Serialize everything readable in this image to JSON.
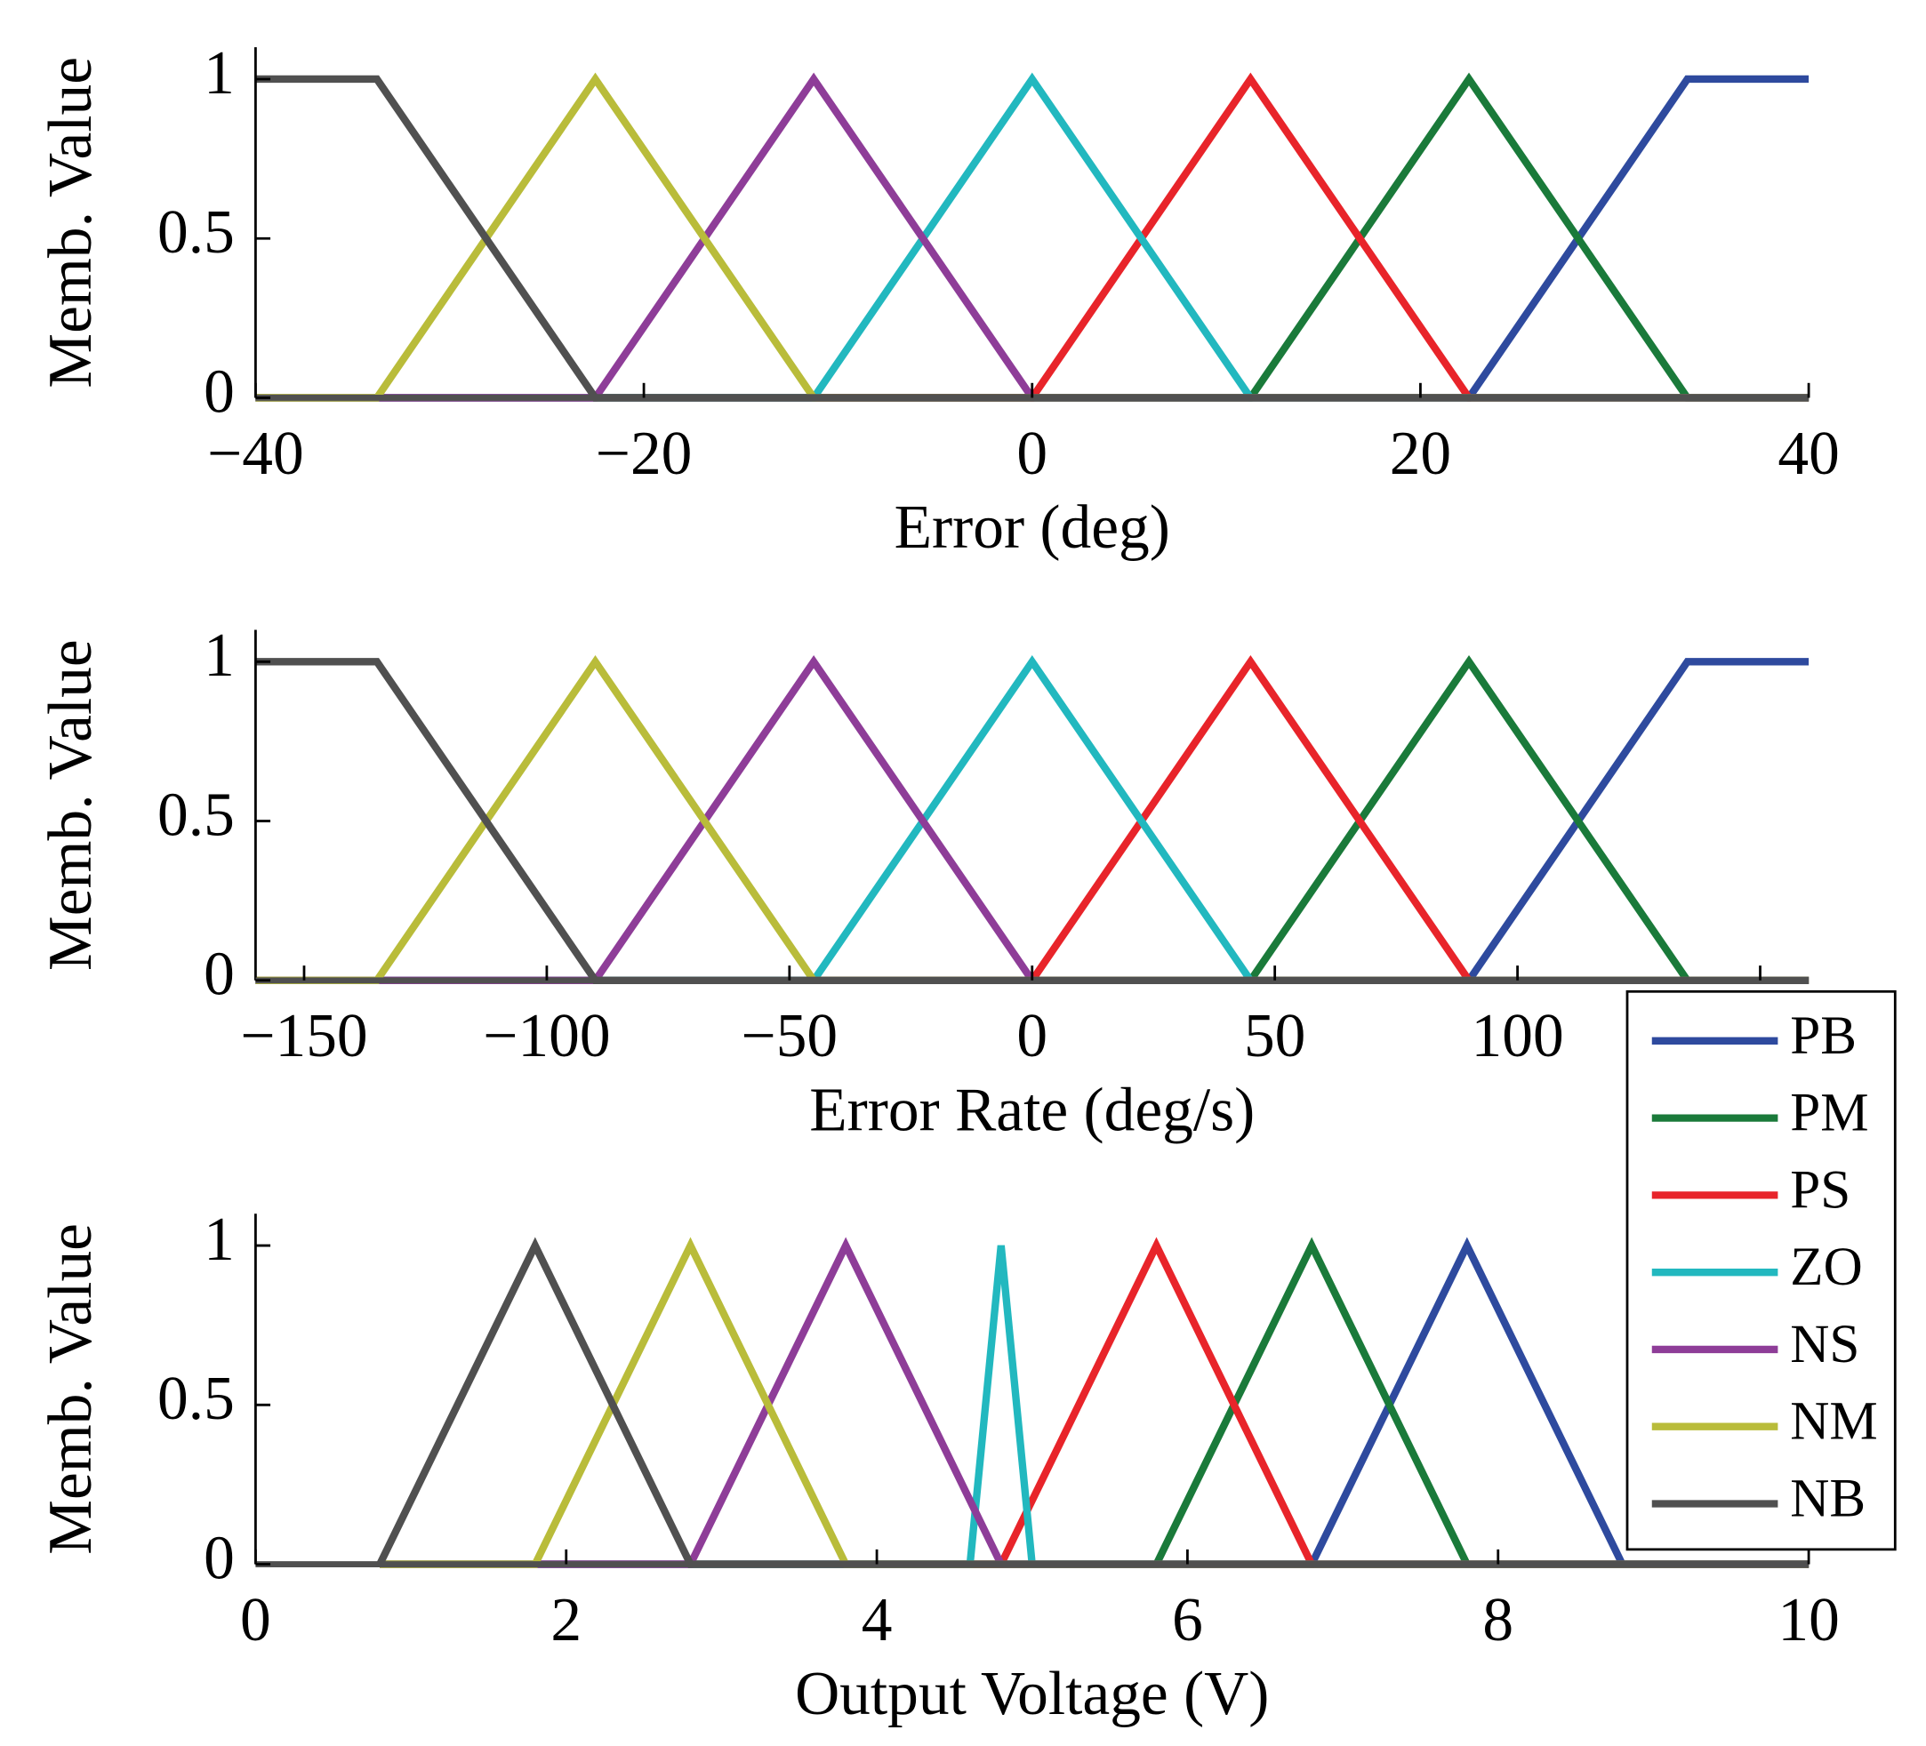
{
  "chart_data": [
    {
      "type": "line",
      "xlabel": "Error (deg)",
      "ylabel": "Memb. Value",
      "xlim": [
        -40,
        40
      ],
      "ylim": [
        0,
        1.1
      ],
      "xticks": [
        {
          "value": -40,
          "label": "−40"
        },
        {
          "value": -20,
          "label": "−20"
        },
        0,
        20,
        40
      ],
      "yticks": [
        0,
        0.5,
        1
      ],
      "series": [
        {
          "color": "#2e4a9e",
          "x": [
            -40,
            22.5,
            33.75,
            40
          ],
          "values": [
            0,
            0,
            1,
            1
          ]
        },
        {
          "color": "#1a7a3a",
          "x": [
            -40,
            11.25,
            22.5,
            33.75,
            40
          ],
          "values": [
            0,
            0,
            1,
            0,
            0
          ]
        },
        {
          "color": "#e8242a",
          "x": [
            -40,
            0,
            11.25,
            22.5,
            40
          ],
          "values": [
            0,
            0,
            1,
            0,
            0
          ]
        },
        {
          "color": "#22b8bf",
          "x": [
            -40,
            -11.25,
            0,
            11.25,
            40
          ],
          "values": [
            0,
            0,
            1,
            0,
            0
          ]
        },
        {
          "color": "#8e3d98",
          "x": [
            -40,
            -22.5,
            -11.25,
            0,
            40
          ],
          "values": [
            0,
            0,
            1,
            0,
            0
          ]
        },
        {
          "color": "#b9bc3a",
          "x": [
            -40,
            -33.75,
            -22.5,
            -11.25,
            40
          ],
          "values": [
            0,
            0,
            1,
            0,
            0
          ]
        },
        {
          "color": "#505050",
          "x": [
            -40,
            -33.75,
            -22.5,
            40
          ],
          "values": [
            1,
            1,
            0,
            0
          ]
        }
      ]
    },
    {
      "type": "line",
      "xlabel": "Error Rate (deg/s)",
      "ylabel": "Memb. Value",
      "xlim": [
        -160,
        160
      ],
      "ylim": [
        0,
        1.1
      ],
      "xticks": [
        {
          "value": -150,
          "label": "−150"
        },
        {
          "value": -100,
          "label": "−100"
        },
        {
          "value": -50,
          "label": "−50"
        },
        0,
        50,
        100,
        150
      ],
      "yticks": [
        0,
        0.5,
        1
      ],
      "series": [
        {
          "color": "#2e4a9e",
          "x": [
            -160,
            90,
            135,
            160
          ],
          "values": [
            0,
            0,
            1,
            1
          ]
        },
        {
          "color": "#1a7a3a",
          "x": [
            -160,
            45,
            90,
            135,
            160
          ],
          "values": [
            0,
            0,
            1,
            0,
            0
          ]
        },
        {
          "color": "#e8242a",
          "x": [
            -160,
            0,
            45,
            90,
            160
          ],
          "values": [
            0,
            0,
            1,
            0,
            0
          ]
        },
        {
          "color": "#22b8bf",
          "x": [
            -160,
            -45,
            0,
            45,
            160
          ],
          "values": [
            0,
            0,
            1,
            0,
            0
          ]
        },
        {
          "color": "#8e3d98",
          "x": [
            -160,
            -90,
            -45,
            0,
            160
          ],
          "values": [
            0,
            0,
            1,
            0,
            0
          ]
        },
        {
          "color": "#b9bc3a",
          "x": [
            -160,
            -135,
            -90,
            -45,
            160
          ],
          "values": [
            0,
            0,
            1,
            0,
            0
          ]
        },
        {
          "color": "#505050",
          "x": [
            -160,
            -135,
            -90,
            160
          ],
          "values": [
            1,
            1,
            0,
            0
          ]
        }
      ]
    },
    {
      "type": "line",
      "xlabel": "Output Voltage (V)",
      "ylabel": "Memb. Value",
      "xlim": [
        0,
        10
      ],
      "ylim": [
        0,
        1.1
      ],
      "xticks": [
        0,
        2,
        4,
        6,
        8,
        10
      ],
      "yticks": [
        0,
        0.5,
        1
      ],
      "legend": true,
      "series": [
        {
          "name": "PB",
          "color": "#2e4a9e",
          "x": [
            0.8,
            6.8,
            7.8,
            8.8,
            10
          ],
          "values": [
            0,
            0,
            1,
            0,
            0
          ]
        },
        {
          "name": "PM",
          "color": "#1a7a3a",
          "x": [
            0.8,
            5.8,
            6.8,
            7.8,
            10
          ],
          "values": [
            0,
            0,
            1,
            0,
            0
          ]
        },
        {
          "name": "PS",
          "color": "#e8242a",
          "x": [
            0.8,
            4.8,
            5.8,
            6.8,
            10
          ],
          "values": [
            0,
            0,
            1,
            0,
            0
          ]
        },
        {
          "name": "ZO",
          "color": "#22b8bf",
          "x": [
            0.8,
            4.6,
            4.8,
            5,
            10
          ],
          "values": [
            0,
            0,
            1,
            0,
            0
          ]
        },
        {
          "name": "NS",
          "color": "#8e3d98",
          "x": [
            0.8,
            2.8,
            3.8,
            4.8,
            10
          ],
          "values": [
            0,
            0,
            1,
            0,
            0
          ]
        },
        {
          "name": "NM",
          "color": "#b9bc3a",
          "x": [
            0.8,
            1.8,
            2.8,
            3.8,
            10
          ],
          "values": [
            0,
            0,
            1,
            0,
            0
          ]
        },
        {
          "name": "NB",
          "color": "#505050",
          "x": [
            0.8,
            1.8,
            2.8,
            10
          ],
          "values": [
            0,
            1,
            0,
            0
          ]
        }
      ]
    }
  ]
}
